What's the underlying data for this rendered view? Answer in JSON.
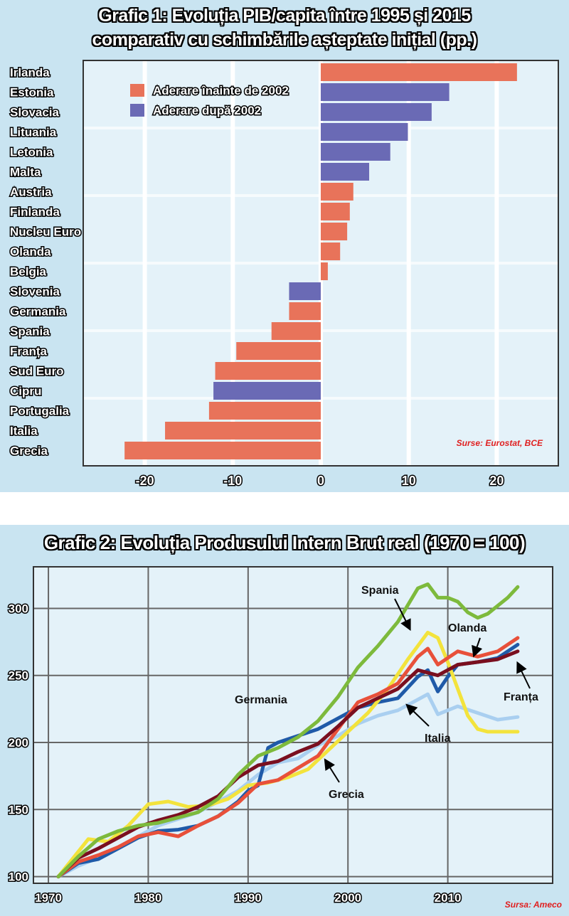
{
  "chart1": {
    "title_line1": "Grafic 1: Evoluția PIB/capita între 1995 și 2015",
    "title_line2": "comparativ cu schimbările așteptate inițial (pp.)",
    "source": "Surse: Eurostat, BCE",
    "legend": [
      {
        "label": "Aderare înainte de 2002",
        "color": "#e8735a"
      },
      {
        "label": "Aderare după 2002",
        "color": "#6a6ab5"
      }
    ],
    "background": "#c9e4f1"
  },
  "chart2": {
    "title": "Grafic 2: Evoluția Produsului Intern Brut real (1970 = 100)",
    "source": "Sursa: Ameco",
    "labels": {
      "spania": "Spania",
      "olanda": "Olanda",
      "franta": "Franța",
      "italia": "Italia",
      "germania": "Germania",
      "grecia": "Grecia"
    }
  },
  "chart_data": [
    {
      "type": "bar",
      "orientation": "horizontal",
      "categories": [
        "Irlanda",
        "Estonia",
        "Slovacia",
        "Lituania",
        "Letonia",
        "Malta",
        "Austria",
        "Finlanda",
        "Nucleu Euro",
        "Olanda",
        "Belgia",
        "Slovenia",
        "Germania",
        "Spania",
        "Franța",
        "Sud Euro",
        "Cipru",
        "Portugalia",
        "Italia",
        "Grecia"
      ],
      "values": [
        22.3,
        14.6,
        12.6,
        9.9,
        7.9,
        5.5,
        3.7,
        3.3,
        3.0,
        2.2,
        0.8,
        -3.6,
        -3.6,
        -5.6,
        -9.6,
        -12.0,
        -12.2,
        -12.7,
        -17.7,
        -22.3
      ],
      "groups": [
        "before",
        "after",
        "after",
        "after",
        "after",
        "after",
        "before",
        "before",
        "before",
        "before",
        "before",
        "after",
        "before",
        "before",
        "before",
        "before",
        "after",
        "before",
        "before",
        "before"
      ],
      "xlim": [
        -27,
        27
      ],
      "xticks": [
        -20,
        -10,
        0,
        10,
        20
      ],
      "grid": true
    },
    {
      "type": "line",
      "xlim": [
        1968.5,
        2020.5
      ],
      "ylim": [
        95,
        331
      ],
      "xticks": [
        1970,
        1980,
        1990,
        2000,
        2010
      ],
      "yticks": [
        100,
        150,
        200,
        250,
        300
      ],
      "grid": true,
      "series": [
        {
          "name": "Germania",
          "color": "#a9cff0",
          "x": [
            1971,
            1973,
            1975,
            1977,
            1979,
            1981,
            1983,
            1985,
            1987,
            1989,
            1991,
            1993,
            1995,
            1997,
            1999,
            2001,
            2003,
            2005,
            2007,
            2008,
            2009,
            2011,
            2013,
            2015,
            2017
          ],
          "y": [
            100,
            108,
            114,
            122,
            130,
            138,
            143,
            148,
            156,
            164,
            176,
            185,
            188,
            198,
            205,
            214,
            220,
            224,
            232,
            236,
            221,
            227,
            222,
            217,
            219
          ]
        },
        {
          "name": "Italia",
          "color": "#1f5aa8",
          "x": [
            1971,
            1973,
            1975,
            1977,
            1979,
            1981,
            1983,
            1985,
            1987,
            1989,
            1990,
            1991,
            1992,
            1993,
            1995,
            1997,
            1999,
            2001,
            2003,
            2005,
            2007,
            2008,
            2009,
            2010,
            2011,
            2013,
            2015,
            2017
          ],
          "y": [
            100,
            110,
            113,
            121,
            129,
            134,
            135,
            138,
            145,
            156,
            164,
            168,
            196,
            200,
            205,
            210,
            218,
            226,
            230,
            233,
            249,
            254,
            238,
            249,
            258,
            260,
            263,
            273
          ]
        },
        {
          "name": "Grecia",
          "color": "#f3e33c",
          "x": [
            1971,
            1974,
            1976,
            1978,
            1980,
            1982,
            1984,
            1986,
            1988,
            1990,
            1992,
            1994,
            1996,
            1998,
            2000,
            2002,
            2004,
            2006,
            2008,
            2009,
            2010,
            2011,
            2012,
            2013,
            2014,
            2015,
            2017
          ],
          "y": [
            100,
            128,
            126,
            138,
            154,
            156,
            152,
            153,
            158,
            168,
            170,
            174,
            180,
            194,
            208,
            222,
            240,
            262,
            282,
            278,
            260,
            240,
            220,
            210,
            208,
            208,
            208
          ]
        },
        {
          "name": "Olanda",
          "color": "#e8503a",
          "x": [
            1971,
            1973,
            1975,
            1977,
            1979,
            1981,
            1983,
            1985,
            1987,
            1989,
            1991,
            1993,
            1995,
            1997,
            1999,
            2001,
            2003,
            2005,
            2007,
            2008,
            2009,
            2011,
            2013,
            2015,
            2017
          ],
          "y": [
            100,
            111,
            116,
            122,
            130,
            133,
            130,
            138,
            145,
            155,
            169,
            172,
            181,
            190,
            210,
            230,
            236,
            244,
            264,
            270,
            258,
            268,
            264,
            268,
            278
          ]
        },
        {
          "name": "Franța",
          "color": "#7a0f1f",
          "x": [
            1971,
            1973,
            1975,
            1977,
            1979,
            1981,
            1983,
            1985,
            1987,
            1989,
            1991,
            1993,
            1995,
            1997,
            1999,
            2001,
            2003,
            2005,
            2007,
            2009,
            2011,
            2013,
            2015,
            2017
          ],
          "y": [
            100,
            114,
            121,
            129,
            137,
            142,
            146,
            152,
            160,
            174,
            183,
            186,
            193,
            199,
            212,
            226,
            233,
            240,
            254,
            250,
            258,
            260,
            262,
            268
          ]
        },
        {
          "name": "Spania",
          "color": "#7dba3c",
          "x": [
            1971,
            1973,
            1975,
            1977,
            1979,
            1981,
            1983,
            1985,
            1987,
            1989,
            1991,
            1993,
            1995,
            1997,
            1999,
            2001,
            2003,
            2005,
            2007,
            2008,
            2009,
            2010,
            2011,
            2012,
            2013,
            2014,
            2015,
            2016,
            2017
          ],
          "y": [
            100,
            115,
            128,
            134,
            138,
            140,
            144,
            148,
            158,
            176,
            190,
            196,
            204,
            216,
            234,
            256,
            272,
            290,
            315,
            318,
            308,
            308,
            305,
            297,
            293,
            296,
            302,
            308,
            316
          ]
        }
      ]
    }
  ]
}
